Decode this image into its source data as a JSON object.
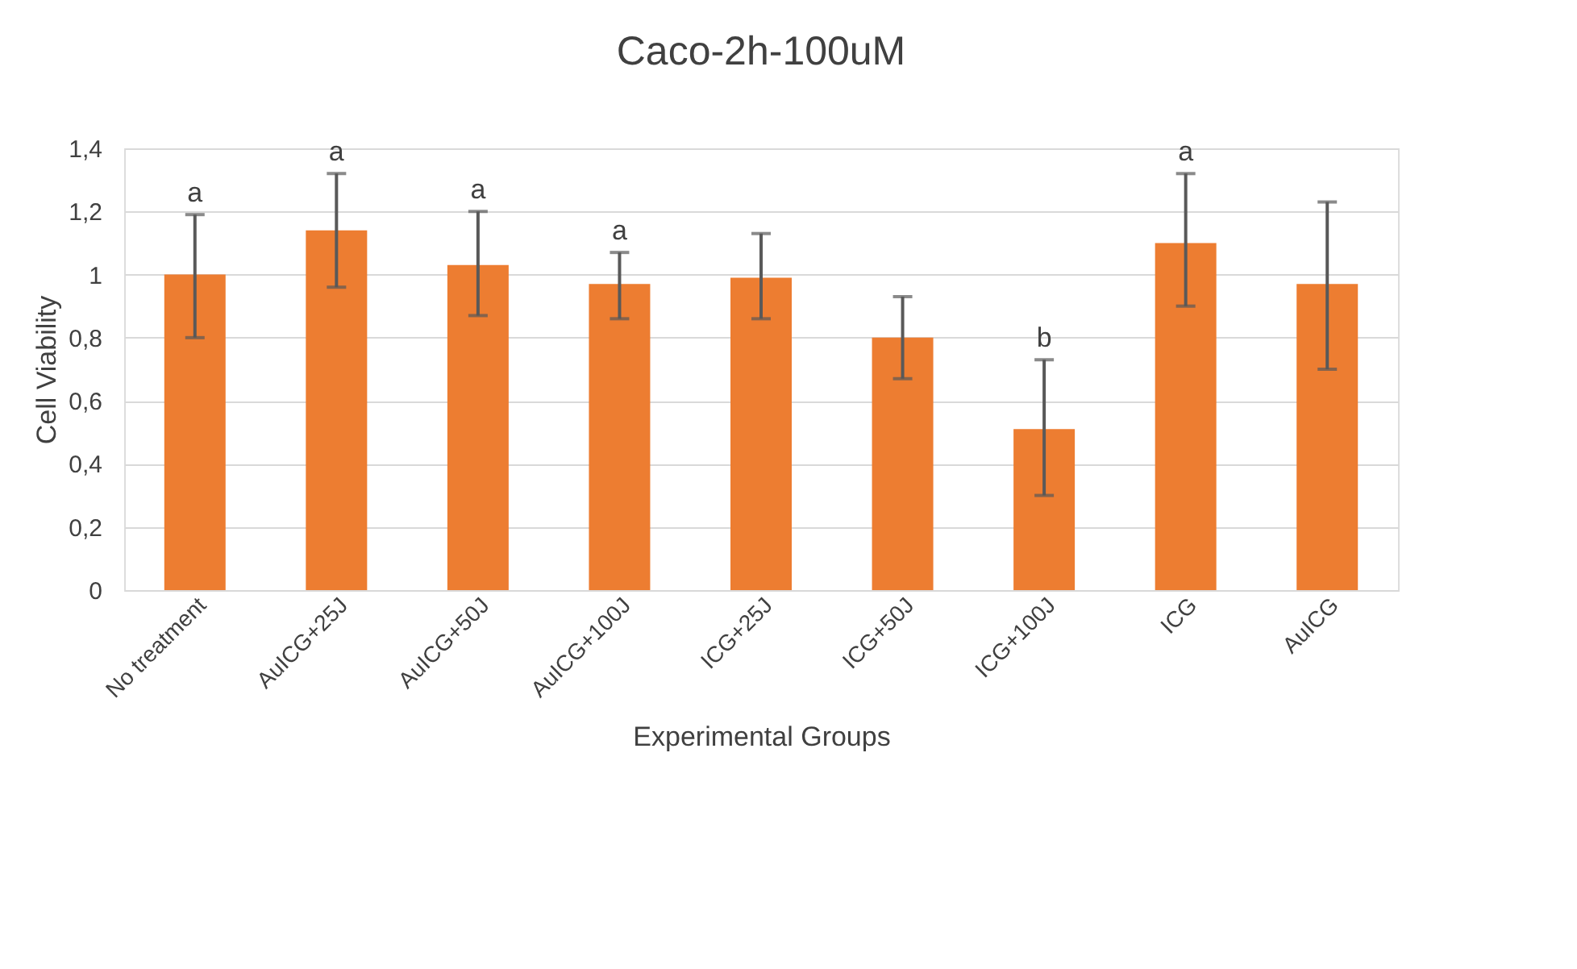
{
  "chart_data": {
    "type": "bar",
    "title": "Caco-2h-100uM",
    "xlabel": "Experimental Groups",
    "ylabel": "Cell Viability",
    "categories": [
      "No treatment",
      "AuICG+25J",
      "AuICG+50J",
      "AuICG+100J",
      "ICG+25J",
      "ICG+50J",
      "ICG+100J",
      "ICG",
      "AuICG"
    ],
    "values": [
      1.0,
      1.14,
      1.03,
      0.97,
      0.99,
      0.8,
      0.51,
      1.1,
      0.97
    ],
    "errors": [
      [
        0.8,
        1.19
      ],
      [
        0.96,
        1.32
      ],
      [
        0.87,
        1.2
      ],
      [
        0.86,
        1.07
      ],
      [
        0.86,
        1.13
      ],
      [
        0.67,
        0.93
      ],
      [
        0.3,
        0.73
      ],
      [
        0.9,
        1.32
      ],
      [
        0.7,
        1.23
      ]
    ],
    "color": "#ed7d31",
    "ylim": [
      0,
      1.4
    ],
    "yticks": [
      0,
      {
        "value": 0.2,
        "label": "0,2"
      },
      {
        "value": 0.4,
        "label": "0,4"
      },
      {
        "value": 0.6,
        "label": "0,6"
      },
      {
        "value": 0.8,
        "label": "0,8"
      },
      1,
      {
        "value": 1.2,
        "label": "1,2"
      },
      {
        "value": 1.4,
        "label": "1,4"
      }
    ],
    "grid": "y",
    "value_labels": [
      "a",
      "a",
      "a",
      "a",
      null,
      null,
      "b",
      "a",
      null
    ]
  }
}
